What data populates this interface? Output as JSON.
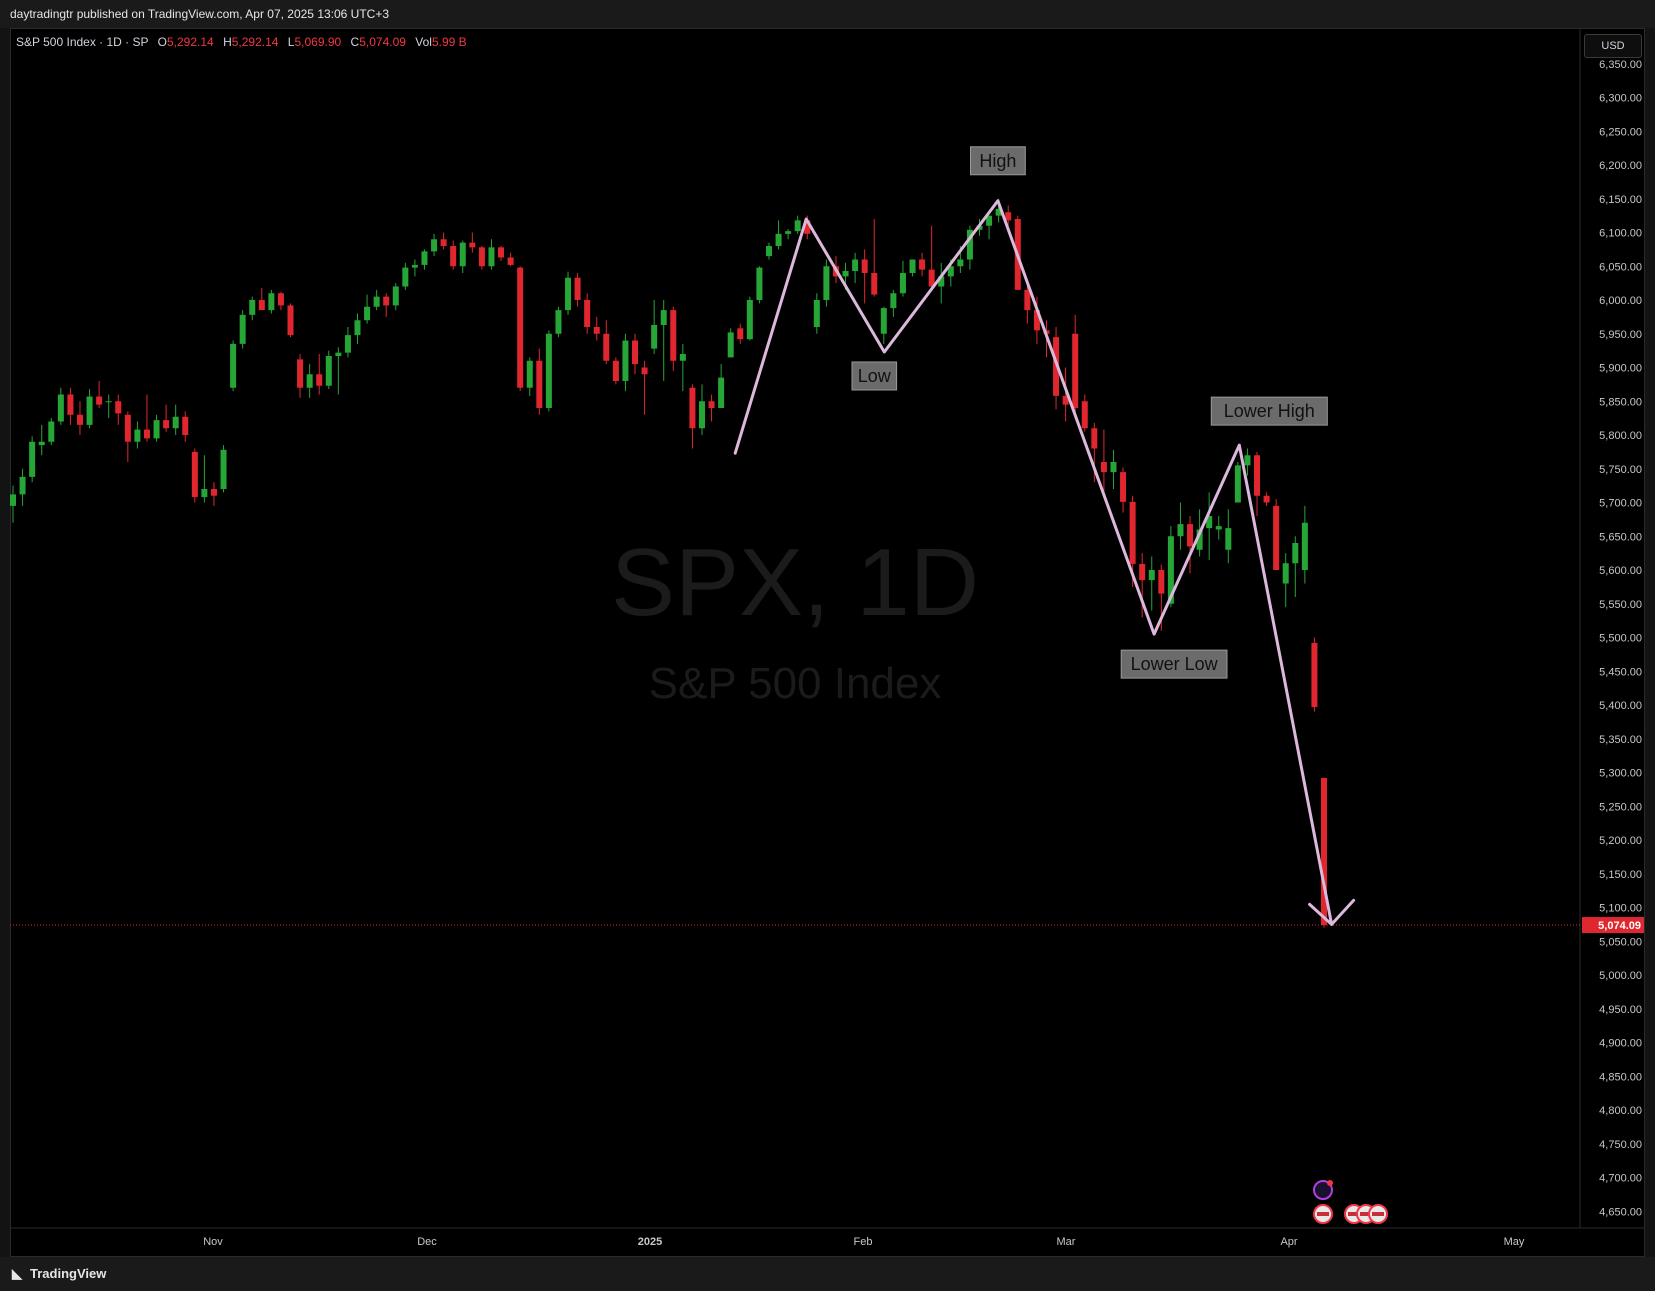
{
  "header": {
    "published_text": "daytradingtr published on TradingView.com, Apr 07, 2025 13:06 UTC+3"
  },
  "legend": {
    "title": "S&P 500 Index · 1D · SP",
    "open_label": "O",
    "open": "5,292.14",
    "high_label": "H",
    "high": "5,292.14",
    "low_label": "L",
    "low": "5,069.90",
    "close_label": "C",
    "close": "5,074.09",
    "vol_label": "Vol",
    "vol": "5.99 B"
  },
  "currency": "USD",
  "watermark": {
    "symbol": "SPX, 1D",
    "name": "S&P 500 Index"
  },
  "footer": {
    "brand": "TradingView"
  },
  "colors": {
    "up": "#26a637",
    "down": "#e0272f",
    "wave_line": "#dcb9dc",
    "price_label_bg": "#e0272f",
    "annotation_bg": "#6b6b6b",
    "background": "#000000"
  },
  "chart_data": {
    "type": "candlestick",
    "title": "S&P 500 Index · 1D · SP",
    "ylim": [
      4620,
      6380
    ],
    "y_ticks": [
      4650,
      4700,
      4750,
      4800,
      4850,
      4900,
      4950,
      5000,
      5050,
      5100,
      5150,
      5200,
      5250,
      5300,
      5350,
      5400,
      5450,
      5500,
      5550,
      5600,
      5650,
      5700,
      5750,
      5800,
      5850,
      5900,
      5950,
      6000,
      6050,
      6100,
      6150,
      6200,
      6250,
      6300,
      6350
    ],
    "x_labels": [
      "Nov",
      "Dec",
      "2025",
      "Feb",
      "Mar",
      "Apr",
      "May"
    ],
    "last_price": "5,074.09",
    "ohlc": [
      [
        5695,
        5725,
        5670,
        5712
      ],
      [
        5712,
        5750,
        5695,
        5738
      ],
      [
        5738,
        5798,
        5730,
        5790
      ],
      [
        5785,
        5815,
        5770,
        5790
      ],
      [
        5790,
        5825,
        5785,
        5820
      ],
      [
        5820,
        5870,
        5815,
        5860
      ],
      [
        5860,
        5870,
        5815,
        5830
      ],
      [
        5830,
        5850,
        5800,
        5815
      ],
      [
        5815,
        5868,
        5810,
        5857
      ],
      [
        5857,
        5880,
        5840,
        5845
      ],
      [
        5850,
        5860,
        5825,
        5850
      ],
      [
        5850,
        5860,
        5815,
        5832
      ],
      [
        5830,
        5835,
        5760,
        5790
      ],
      [
        5790,
        5820,
        5780,
        5808
      ],
      [
        5808,
        5860,
        5790,
        5795
      ],
      [
        5795,
        5830,
        5790,
        5822
      ],
      [
        5822,
        5845,
        5805,
        5810
      ],
      [
        5810,
        5845,
        5800,
        5827
      ],
      [
        5827,
        5835,
        5790,
        5800
      ],
      [
        5775,
        5780,
        5700,
        5708
      ],
      [
        5708,
        5770,
        5700,
        5720
      ],
      [
        5720,
        5730,
        5695,
        5710
      ],
      [
        5720,
        5785,
        5715,
        5778
      ],
      [
        5870,
        5940,
        5865,
        5935
      ],
      [
        5935,
        5985,
        5928,
        5978
      ],
      [
        5978,
        6005,
        5970,
        6000
      ],
      [
        6000,
        6018,
        5990,
        5985
      ],
      [
        5985,
        6015,
        5980,
        6010
      ],
      [
        6010,
        6012,
        5985,
        5992
      ],
      [
        5992,
        5995,
        5945,
        5948
      ],
      [
        5912,
        5920,
        5855,
        5870
      ],
      [
        5870,
        5905,
        5855,
        5890
      ],
      [
        5890,
        5920,
        5860,
        5873
      ],
      [
        5873,
        5925,
        5868,
        5917
      ],
      [
        5917,
        5930,
        5860,
        5922
      ],
      [
        5922,
        5960,
        5915,
        5948
      ],
      [
        5948,
        5980,
        5935,
        5970
      ],
      [
        5970,
        6008,
        5965,
        5990
      ],
      [
        5990,
        6015,
        5985,
        6005
      ],
      [
        6005,
        6010,
        5975,
        5992
      ],
      [
        5992,
        6025,
        5985,
        6020
      ],
      [
        6020,
        6055,
        6015,
        6048
      ],
      [
        6048,
        6060,
        6035,
        6052
      ],
      [
        6052,
        6075,
        6045,
        6072
      ],
      [
        6072,
        6098,
        6065,
        6090
      ],
      [
        6090,
        6100,
        6075,
        6080
      ],
      [
        6080,
        6088,
        6045,
        6050
      ],
      [
        6050,
        6088,
        6040,
        6085
      ],
      [
        6085,
        6100,
        6070,
        6078
      ],
      [
        6078,
        6080,
        6045,
        6050
      ],
      [
        6050,
        6090,
        6045,
        6078
      ],
      [
        6078,
        6080,
        6058,
        6063
      ],
      [
        6063,
        6070,
        6050,
        6052
      ],
      [
        6048,
        6050,
        5865,
        5870
      ],
      [
        5870,
        5915,
        5858,
        5910
      ],
      [
        5910,
        5928,
        5830,
        5840
      ],
      [
        5840,
        5955,
        5835,
        5950
      ],
      [
        5950,
        5990,
        5945,
        5985
      ],
      [
        5985,
        6042,
        5978,
        6033
      ],
      [
        6033,
        6040,
        5990,
        6000
      ],
      [
        6000,
        6010,
        5950,
        5960
      ],
      [
        5960,
        5975,
        5940,
        5950
      ],
      [
        5950,
        5970,
        5905,
        5910
      ],
      [
        5910,
        5915,
        5875,
        5880
      ],
      [
        5880,
        5950,
        5865,
        5940
      ],
      [
        5940,
        5950,
        5890,
        5905
      ],
      [
        5900,
        5910,
        5830,
        5890
      ],
      [
        5928,
        6000,
        5920,
        5963
      ],
      [
        5963,
        6000,
        5880,
        5985
      ],
      [
        5985,
        5990,
        5895,
        5910
      ],
      [
        5910,
        5935,
        5865,
        5920
      ],
      [
        5870,
        5875,
        5780,
        5810
      ],
      [
        5810,
        5875,
        5800,
        5850
      ],
      [
        5850,
        5860,
        5820,
        5840
      ],
      [
        5840,
        5905,
        5840,
        5885
      ],
      [
        5915,
        5958,
        5915,
        5952
      ],
      [
        5958,
        5965,
        5935,
        5942
      ],
      [
        5942,
        6005,
        5940,
        6000
      ],
      [
        6000,
        6050,
        5995,
        6048
      ],
      [
        6065,
        6085,
        6060,
        6080
      ],
      [
        6080,
        6118,
        6075,
        6098
      ],
      [
        6098,
        6105,
        6090,
        6102
      ],
      [
        6102,
        6125,
        6098,
        6118
      ],
      [
        6118,
        6125,
        6090,
        6098
      ],
      [
        5960,
        6010,
        5950,
        6000
      ],
      [
        6000,
        6060,
        5990,
        6050
      ],
      [
        6050,
        6065,
        6025,
        6035
      ],
      [
        6035,
        6055,
        6015,
        6043
      ],
      [
        6043,
        6070,
        6025,
        6060
      ],
      [
        6060,
        6075,
        5995,
        6040
      ],
      [
        6040,
        6120,
        6005,
        6008
      ],
      [
        5950,
        5990,
        5935,
        5988
      ],
      [
        5988,
        6015,
        5975,
        6010
      ],
      [
        6010,
        6058,
        6005,
        6040
      ],
      [
        6040,
        6060,
        6035,
        6060
      ],
      [
        6060,
        6070,
        6035,
        6045
      ],
      [
        6045,
        6110,
        6015,
        6020
      ],
      [
        6020,
        6055,
        5995,
        6035
      ],
      [
        6035,
        6060,
        6020,
        6050
      ],
      [
        6050,
        6080,
        6040,
        6060
      ],
      [
        6060,
        6110,
        6045,
        6104
      ],
      [
        6104,
        6120,
        6095,
        6110
      ],
      [
        6110,
        6125,
        6090,
        6125
      ],
      [
        6125,
        6150,
        6115,
        6135
      ],
      [
        6130,
        6140,
        6110,
        6118
      ],
      [
        6120,
        6125,
        6030,
        6015
      ],
      [
        6015,
        6030,
        5965,
        5985
      ],
      [
        5985,
        6005,
        5935,
        5955
      ],
      [
        5955,
        5970,
        5915,
        5950
      ],
      [
        5945,
        5960,
        5838,
        5858
      ],
      [
        5858,
        5900,
        5820,
        5845
      ],
      [
        5950,
        5978,
        5832,
        5840
      ],
      [
        5850,
        5860,
        5805,
        5810
      ],
      [
        5810,
        5818,
        5730,
        5780
      ],
      [
        5760,
        5808,
        5710,
        5745
      ],
      [
        5745,
        5778,
        5720,
        5760
      ],
      [
        5745,
        5752,
        5685,
        5701
      ],
      [
        5701,
        5710,
        5575,
        5609
      ],
      [
        5609,
        5625,
        5530,
        5585
      ],
      [
        5585,
        5620,
        5540,
        5600
      ],
      [
        5600,
        5608,
        5510,
        5565
      ],
      [
        5550,
        5665,
        5545,
        5650
      ],
      [
        5650,
        5700,
        5630,
        5668
      ],
      [
        5668,
        5680,
        5595,
        5635
      ],
      [
        5630,
        5690,
        5620,
        5660
      ],
      [
        5662,
        5715,
        5615,
        5680
      ],
      [
        5660,
        5680,
        5645,
        5665
      ],
      [
        5630,
        5690,
        5610,
        5662
      ],
      [
        5700,
        5760,
        5700,
        5755
      ],
      [
        5755,
        5780,
        5740,
        5770
      ],
      [
        5770,
        5775,
        5680,
        5710
      ],
      [
        5710,
        5715,
        5695,
        5700
      ],
      [
        5695,
        5705,
        5600,
        5600
      ],
      [
        5580,
        5625,
        5545,
        5610
      ],
      [
        5610,
        5650,
        5560,
        5640
      ],
      [
        5600,
        5695,
        5580,
        5670
      ],
      [
        5492,
        5500,
        5390,
        5397
      ],
      [
        5292,
        5292,
        5070,
        5074
      ]
    ],
    "annotations": [
      "High",
      "Low",
      "Lower High",
      "Lower Low"
    ],
    "wave_points": [
      [
        "2025-01-13",
        5773
      ],
      [
        "2025-01-23",
        6120
      ],
      [
        "2025-02-03",
        5923
      ],
      [
        "2025-02-19",
        6147
      ],
      [
        "2025-03-13",
        5505
      ],
      [
        "2025-03-25",
        5785
      ],
      [
        "2025-04-07",
        5075
      ]
    ]
  }
}
